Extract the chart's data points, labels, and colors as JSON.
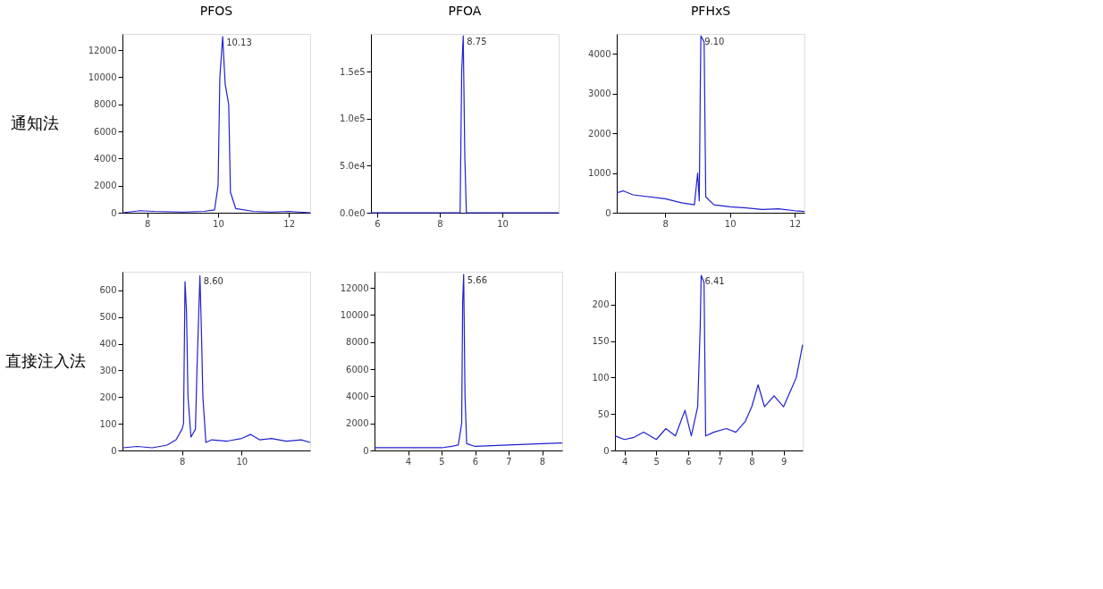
{
  "chart_data": [
    {
      "type": "line",
      "title": "PFOS",
      "ylabel": "通知法",
      "xlim": [
        7.3,
        12.6
      ],
      "xticks": [
        8,
        10,
        12
      ],
      "ylim": [
        0,
        13200
      ],
      "yticks": [
        0,
        2000,
        4000,
        6000,
        8000,
        10000,
        12000
      ],
      "grid": false,
      "annotations": [
        {
          "text": "10.13",
          "x": 10.13,
          "y": 13000
        }
      ],
      "series": [
        {
          "color": "#2020d0",
          "x": [
            7.3,
            7.8,
            8.2,
            9,
            9.6,
            9.9,
            10.0,
            10.05,
            10.13,
            10.2,
            10.3,
            10.35,
            10.5,
            11,
            11.5,
            12,
            12.6
          ],
          "values": [
            0,
            150,
            100,
            50,
            100,
            200,
            2000,
            10000,
            13000,
            9500,
            8000,
            1500,
            300,
            100,
            50,
            100,
            0
          ]
        }
      ]
    },
    {
      "type": "line",
      "title": "PFOA",
      "xlim": [
        5.8,
        11.8
      ],
      "xticks": [
        6,
        8,
        10
      ],
      "ylim": [
        0,
        190000
      ],
      "yticks": [
        {
          "value": 0,
          "label": "0.0e0"
        },
        {
          "value": 50000,
          "label": "5.0e4"
        },
        {
          "value": 100000,
          "label": "1.0e5"
        },
        {
          "value": 150000,
          "label": "1.5e5"
        }
      ],
      "grid": false,
      "annotations": [
        {
          "text": "8.75",
          "x": 8.75,
          "y": 188000
        }
      ],
      "series": [
        {
          "color": "#2020d0",
          "x": [
            5.8,
            7,
            8,
            8.5,
            8.65,
            8.7,
            8.75,
            8.8,
            8.85,
            9,
            10,
            11.8
          ],
          "values": [
            0,
            0,
            0,
            0,
            0,
            150000,
            188000,
            60000,
            0,
            0,
            0,
            0
          ]
        }
      ]
    },
    {
      "type": "line",
      "title": "PFHxS",
      "xlim": [
        6.5,
        12.3
      ],
      "xticks": [
        8,
        10,
        12
      ],
      "ylim": [
        0,
        4500
      ],
      "yticks": [
        0,
        1000,
        2000,
        3000,
        4000
      ],
      "grid": false,
      "annotations": [
        {
          "text": "9.10",
          "x": 9.1,
          "y": 4450
        }
      ],
      "series": [
        {
          "color": "#2020d0",
          "x": [
            6.5,
            6.7,
            7,
            8,
            8.5,
            8.9,
            9.0,
            9.05,
            9.08,
            9.1,
            9.2,
            9.25,
            9.5,
            10,
            10.5,
            11,
            11.5,
            12,
            12.3
          ],
          "values": [
            500,
            550,
            450,
            350,
            250,
            200,
            1000,
            300,
            3000,
            4450,
            4300,
            400,
            200,
            150,
            120,
            80,
            100,
            50,
            30
          ]
        }
      ]
    },
    {
      "type": "line",
      "ylabel": "直接注入法",
      "xlim": [
        6.0,
        12.3
      ],
      "xticks": [
        8,
        10
      ],
      "ylim": [
        0,
        670
      ],
      "yticks": [
        0,
        100,
        200,
        300,
        400,
        500,
        600
      ],
      "grid": false,
      "annotations": [
        {
          "text": "8.60",
          "x": 8.6,
          "y": 655
        }
      ],
      "series": [
        {
          "color": "#2020d0",
          "x": [
            6.0,
            6.5,
            7,
            7.5,
            7.8,
            8.0,
            8.05,
            8.1,
            8.15,
            8.2,
            8.3,
            8.45,
            8.5,
            8.6,
            8.65,
            8.7,
            8.8,
            9,
            9.5,
            10,
            10.3,
            10.6,
            11,
            11.5,
            12,
            12.3
          ],
          "values": [
            10,
            15,
            10,
            20,
            40,
            80,
            100,
            633,
            520,
            200,
            50,
            80,
            300,
            655,
            450,
            200,
            30,
            40,
            35,
            45,
            60,
            40,
            45,
            35,
            40,
            30
          ]
        }
      ]
    },
    {
      "type": "line",
      "xlim": [
        3.0,
        8.6
      ],
      "xticks": [
        4,
        5,
        6,
        7,
        8
      ],
      "ylim": [
        0,
        13200
      ],
      "yticks": [
        0,
        2000,
        4000,
        6000,
        8000,
        10000,
        12000
      ],
      "grid": false,
      "annotations": [
        {
          "text": "5.66",
          "x": 5.66,
          "y": 13000
        }
      ],
      "series": [
        {
          "color": "#2020d0",
          "x": [
            3,
            4,
            5,
            5.3,
            5.5,
            5.6,
            5.63,
            5.66,
            5.7,
            5.75,
            6,
            7,
            8,
            8.6
          ],
          "values": [
            200,
            200,
            200,
            300,
            400,
            2000,
            11000,
            13000,
            4000,
            500,
            300,
            400,
            500,
            550
          ]
        }
      ]
    },
    {
      "type": "line",
      "xlim": [
        3.7,
        9.6
      ],
      "xticks": [
        4,
        5,
        6,
        7,
        8,
        9
      ],
      "ylim": [
        0,
        245
      ],
      "yticks": [
        0,
        50,
        100,
        150,
        200
      ],
      "grid": false,
      "annotations": [
        {
          "text": "6.41",
          "x": 6.41,
          "y": 240
        }
      ],
      "series": [
        {
          "color": "#2020d0",
          "x": [
            3.7,
            4,
            4.3,
            4.6,
            5,
            5.3,
            5.6,
            5.9,
            6.1,
            6.3,
            6.38,
            6.41,
            6.5,
            6.55,
            6.8,
            7.2,
            7.5,
            7.8,
            8.0,
            8.2,
            8.4,
            8.7,
            9,
            9.2,
            9.4,
            9.6
          ],
          "values": [
            20,
            15,
            18,
            25,
            15,
            30,
            20,
            55,
            20,
            60,
            170,
            240,
            230,
            20,
            25,
            30,
            25,
            40,
            60,
            90,
            60,
            75,
            60,
            80,
            100,
            145
          ]
        }
      ]
    }
  ]
}
